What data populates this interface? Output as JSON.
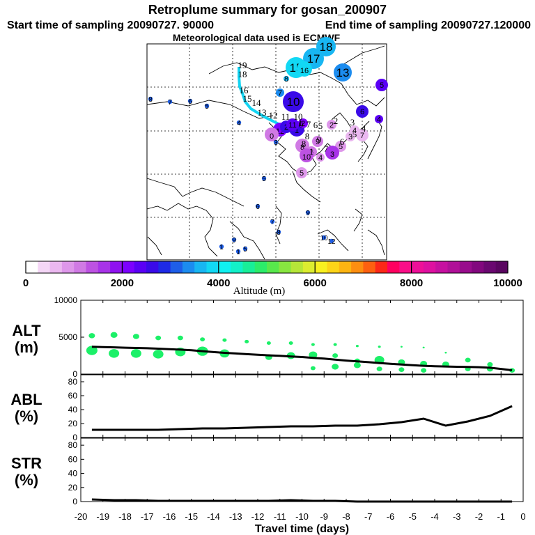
{
  "header": {
    "title": "Retroplume summary for gosan_200907",
    "start_label": "Start time of sampling 20090727. 90000",
    "end_label": "End time of sampling 20090727.120000",
    "met_label": "Meteorological data used is ECMWF"
  },
  "colorbar": {
    "title": "Altitude (m)",
    "range": [
      0,
      10000
    ],
    "tick_labels": [
      "0",
      "2000",
      "4000",
      "6000",
      "8000",
      "10000"
    ],
    "colors": [
      "#ffffff",
      "#f4d6f6",
      "#ebb8f0",
      "#de97ea",
      "#d07ae4",
      "#bd52e2",
      "#a833e8",
      "#8f12f0",
      "#7c00ff",
      "#5a00f5",
      "#3a0ae8",
      "#1e2ae6",
      "#1e5ee8",
      "#1c8cef",
      "#18b6f2",
      "#12d8f4",
      "#10f0f0",
      "#12f0c8",
      "#18ee98",
      "#2cec6a",
      "#58e84c",
      "#88e640",
      "#b6e638",
      "#dcec30",
      "#f8f020",
      "#fcd418",
      "#fcb412",
      "#fc8e10",
      "#fc6010",
      "#fc2818",
      "#ff0060",
      "#fa0e88",
      "#ee1098",
      "#de10a0",
      "#c610a0",
      "#b01098",
      "#980c8c",
      "#82087e",
      "#6a0870",
      "#5a0660"
    ]
  },
  "map": {
    "plume_points": [
      {
        "label": "18",
        "alt": 3700,
        "size": 14
      },
      {
        "label": "17",
        "alt": 3500,
        "size": 15
      },
      {
        "label": "15",
        "alt": 3800,
        "size": 15
      },
      {
        "label": "16",
        "alt": 3900,
        "size": 11
      },
      {
        "label": "13",
        "alt": 3300,
        "size": 13
      },
      {
        "label": "8",
        "alt": 3600,
        "size": 4
      },
      {
        "label": "7",
        "alt": 3300,
        "size": 6
      },
      {
        "label": "10",
        "alt": 2700,
        "size": 15
      },
      {
        "label": "12",
        "alt": 2200,
        "size": 10
      },
      {
        "label": "2",
        "alt": 900,
        "size": 7
      },
      {
        "label": "4",
        "alt": 600,
        "size": 7
      },
      {
        "label": "7",
        "alt": 700,
        "size": 9
      },
      {
        "label": "3",
        "alt": 600,
        "size": 7
      },
      {
        "label": "5",
        "alt": 800,
        "size": 8
      },
      {
        "label": "4",
        "alt": 900,
        "size": 6
      },
      {
        "label": "8",
        "alt": 1200,
        "size": 10
      },
      {
        "label": "9",
        "alt": 1200,
        "size": 8
      },
      {
        "label": "6",
        "alt": 1000,
        "size": 8
      },
      {
        "label": "3",
        "alt": 1600,
        "size": 10
      },
      {
        "label": "10",
        "alt": 1400,
        "size": 10
      },
      {
        "label": "5",
        "alt": 800,
        "size": 8
      },
      {
        "label": "0",
        "alt": 1000,
        "size": 10
      },
      {
        "label": "2",
        "alt": 2500,
        "size": 9
      },
      {
        "label": "1",
        "alt": 2600,
        "size": 11
      },
      {
        "label": "11",
        "alt": 2400,
        "size": 9
      },
      {
        "label": "2",
        "alt": 2200,
        "size": 7
      },
      {
        "label": "5",
        "alt": 2400,
        "size": 9
      },
      {
        "label": "4",
        "alt": 2300,
        "size": 6
      },
      {
        "label": "6",
        "alt": 2500,
        "size": 9
      }
    ],
    "plume_labels": [
      "19",
      "18",
      "17",
      "16",
      "15",
      "14",
      "13",
      "12",
      "11",
      "10",
      "9",
      "8",
      "7",
      "6",
      "5",
      "4",
      "3",
      "2",
      "1"
    ],
    "path_labels": [
      "19",
      "18",
      "16",
      "15",
      "14",
      "13",
      "12",
      "11",
      "10",
      "2",
      "3",
      "4",
      "5",
      "6",
      "7",
      "8",
      "9",
      "1",
      "0",
      "1",
      "7",
      "6",
      "5",
      "8"
    ]
  },
  "chart_data": [
    {
      "type": "scatter",
      "id": "ALT",
      "ylabel": "ALT",
      "yunit": "(m)",
      "ylim": [
        0,
        10000
      ],
      "yticks": [
        "0",
        "5000",
        "10000"
      ],
      "xlim": [
        -20,
        0
      ],
      "line": {
        "x": [
          -19.5,
          -19,
          -18.5,
          -18,
          -17.5,
          -17,
          -16.5,
          -16,
          -15.5,
          -15,
          -14.5,
          -14,
          -13.5,
          -13,
          -12.5,
          -12,
          -11.5,
          -11,
          -10.5,
          -10,
          -9.5,
          -9,
          -8.5,
          -8,
          -7.5,
          -7,
          -6.5,
          -6,
          -5.5,
          -5,
          -4.5,
          -4,
          -3.5,
          -3,
          -2.5,
          -2,
          -1.5,
          -1,
          -0.5
        ],
        "y": [
          3700,
          3650,
          3620,
          3580,
          3540,
          3500,
          3440,
          3380,
          3310,
          3230,
          3100,
          2980,
          2880,
          2790,
          2700,
          2620,
          2540,
          2470,
          2390,
          2310,
          2200,
          2090,
          1960,
          1830,
          1720,
          1610,
          1500,
          1400,
          1300,
          1200,
          1120,
          1070,
          1030,
          990,
          960,
          930,
          860,
          700,
          520
        ]
      },
      "dots": [
        {
          "x": -19.5,
          "alt": 5200,
          "size": 9
        },
        {
          "x": -19.5,
          "alt": 3200,
          "size": 16
        },
        {
          "x": -18.5,
          "alt": 5300,
          "size": 10
        },
        {
          "x": -18.5,
          "alt": 2800,
          "size": 15
        },
        {
          "x": -17.5,
          "alt": 5100,
          "size": 9
        },
        {
          "x": -17.5,
          "alt": 2800,
          "size": 15
        },
        {
          "x": -16.5,
          "alt": 4900,
          "size": 8
        },
        {
          "x": -16.5,
          "alt": 2700,
          "size": 15
        },
        {
          "x": -15.5,
          "alt": 4900,
          "size": 8
        },
        {
          "x": -15.5,
          "alt": 3000,
          "size": 15
        },
        {
          "x": -14.5,
          "alt": 4700,
          "size": 7
        },
        {
          "x": -14.5,
          "alt": 3100,
          "size": 16
        },
        {
          "x": -13.5,
          "alt": 4600,
          "size": 6
        },
        {
          "x": -13.5,
          "alt": 2800,
          "size": 14
        },
        {
          "x": -12.5,
          "alt": 4400,
          "size": 6
        },
        {
          "x": -11.5,
          "alt": 4200,
          "size": 6
        },
        {
          "x": -11.5,
          "alt": 2300,
          "size": 10
        },
        {
          "x": -10.5,
          "alt": 4200,
          "size": 6
        },
        {
          "x": -10.5,
          "alt": 2500,
          "size": 12
        },
        {
          "x": -9.5,
          "alt": 4000,
          "size": 5
        },
        {
          "x": -9.5,
          "alt": 2600,
          "size": 12
        },
        {
          "x": -9.5,
          "alt": 800,
          "size": 7
        },
        {
          "x": -8.5,
          "alt": 4000,
          "size": 5
        },
        {
          "x": -8.5,
          "alt": 2500,
          "size": 8
        },
        {
          "x": -8.5,
          "alt": 1000,
          "size": 10
        },
        {
          "x": -7.5,
          "alt": 3800,
          "size": 4
        },
        {
          "x": -7.5,
          "alt": 1800,
          "size": 8
        },
        {
          "x": -7.5,
          "alt": 1200,
          "size": 10
        },
        {
          "x": -6.5,
          "alt": 3700,
          "size": 4
        },
        {
          "x": -6.5,
          "alt": 1900,
          "size": 14
        },
        {
          "x": -6.5,
          "alt": 700,
          "size": 8
        },
        {
          "x": -5.5,
          "alt": 3700,
          "size": 3
        },
        {
          "x": -5.5,
          "alt": 1600,
          "size": 10
        },
        {
          "x": -5.5,
          "alt": 600,
          "size": 8
        },
        {
          "x": -4.5,
          "alt": 3600,
          "size": 3
        },
        {
          "x": -4.5,
          "alt": 1400,
          "size": 10
        },
        {
          "x": -4.5,
          "alt": 500,
          "size": 8
        },
        {
          "x": -3.5,
          "alt": 2900,
          "size": 3
        },
        {
          "x": -3.5,
          "alt": 1300,
          "size": 10
        },
        {
          "x": -2.5,
          "alt": 1900,
          "size": 8
        },
        {
          "x": -2.5,
          "alt": 700,
          "size": 8
        },
        {
          "x": -1.5,
          "alt": 1300,
          "size": 8
        },
        {
          "x": -1.5,
          "alt": 700,
          "size": 9
        },
        {
          "x": -0.5,
          "alt": 500,
          "size": 8
        }
      ]
    },
    {
      "type": "line",
      "id": "ABL",
      "ylabel": "ABL",
      "yunit": "(%)",
      "ylim": [
        0,
        90
      ],
      "yticks": [
        "0",
        "20",
        "40",
        "60",
        "80"
      ],
      "xlim": [
        -20,
        0
      ],
      "x": [
        -19.5,
        -18.5,
        -17.5,
        -16.5,
        -15.5,
        -14.5,
        -13.5,
        -12.5,
        -11.5,
        -10.5,
        -9.5,
        -8.5,
        -7.5,
        -6.5,
        -5.5,
        -4.5,
        -3.5,
        -2.5,
        -1.5,
        -0.5
      ],
      "y": [
        11,
        11,
        11,
        11,
        12,
        13,
        13,
        14,
        15,
        16,
        16,
        17,
        17,
        19,
        22,
        27,
        17,
        23,
        31,
        45
      ]
    },
    {
      "type": "line",
      "id": "STR",
      "ylabel": "STR",
      "yunit": "(%)",
      "ylim": [
        0,
        90
      ],
      "yticks": [
        "0",
        "20",
        "40",
        "60",
        "80"
      ],
      "xlim": [
        -20,
        0
      ],
      "xlabel": "Travel time (days)",
      "xticks": [
        "-20",
        "-19",
        "-18",
        "-17",
        "-16",
        "-15",
        "-14",
        "-13",
        "-12",
        "-11",
        "-10",
        "-9",
        "-8",
        "-7",
        "-6",
        "-5",
        "-4",
        "-3",
        "-2",
        "-1",
        "0"
      ],
      "x": [
        -19.5,
        -18.5,
        -17.5,
        -16.5,
        -15.5,
        -14.5,
        -13.5,
        -12.5,
        -11.5,
        -10.5,
        -9.5,
        -8.5,
        -7.5,
        -6.5,
        -5.5,
        -4.5,
        -3.5,
        -2.5,
        -1.5,
        -0.5
      ],
      "y": [
        3,
        2,
        2,
        1,
        1,
        1,
        1,
        1,
        1,
        2,
        1,
        1,
        0,
        0,
        0,
        0,
        0,
        0,
        0,
        0
      ]
    }
  ]
}
